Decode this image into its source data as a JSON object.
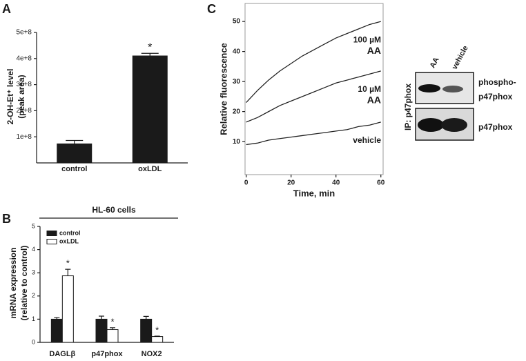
{
  "chart_data": [
    {
      "type": "bar",
      "panel": "A",
      "ylabel": [
        "2-OH-Et⁺ level",
        "(peak area)"
      ],
      "categories": [
        "control",
        "oxLDL"
      ],
      "values": [
        73000000,
        410000000
      ],
      "errors": [
        13000000,
        10000000
      ],
      "color": "#1a1a1a",
      "ylim": [
        0,
        500000000
      ],
      "yticks": [
        {
          "value": 100000000,
          "label": "1e+8"
        },
        {
          "value": 200000000,
          "label": "2e+8"
        },
        {
          "value": 300000000,
          "label": "3e+8"
        },
        {
          "value": 400000000,
          "label": "4e+8"
        },
        {
          "value": 500000000,
          "label": "5e+8"
        }
      ],
      "annotations": [
        {
          "text": "*",
          "category": 1
        }
      ]
    },
    {
      "type": "bar",
      "panel": "B",
      "title": "HL-60 cells",
      "ylabel": [
        "mRNA expression",
        "(relative to control)"
      ],
      "categories": [
        "DAGLβ",
        "p47phox",
        "NOX2"
      ],
      "series": [
        {
          "name": "control",
          "color": "#1a1a1a",
          "values": [
            1,
            1,
            1
          ],
          "errors": [
            0.07,
            0.13,
            0.12
          ]
        },
        {
          "name": "oxLDL",
          "color": "#ffffff",
          "values": [
            2.87,
            0.55,
            0.25
          ],
          "errors": [
            0.28,
            0.08,
            0.02
          ]
        }
      ],
      "ylim": [
        0,
        5
      ],
      "yticks": [
        0,
        1,
        2,
        3,
        4,
        5
      ],
      "annotations": [
        {
          "text": "*",
          "series": 1,
          "category": 0
        },
        {
          "text": "*",
          "series": 1,
          "category": 1
        },
        {
          "text": "*",
          "series": 1,
          "category": 2
        }
      ]
    },
    {
      "type": "line",
      "panel": "C",
      "xlabel": "Time, min",
      "ylabel": "Relative fluorescence",
      "x": [
        0,
        5,
        10,
        15,
        20,
        25,
        30,
        35,
        40,
        45,
        50,
        55,
        60
      ],
      "series": [
        {
          "name": [
            "100 µM",
            "AA"
          ],
          "color": "#222222",
          "values": [
            23,
            27,
            30.5,
            33.5,
            36,
            38.5,
            40.5,
            42.5,
            44.5,
            46,
            47.5,
            49,
            50
          ]
        },
        {
          "name": [
            "10 µM",
            "AA"
          ],
          "color": "#222222",
          "values": [
            16.5,
            18,
            20,
            22,
            23.5,
            25,
            26.5,
            28,
            29.5,
            30.5,
            31.5,
            32.5,
            33.5
          ]
        },
        {
          "name": [
            "vehicle"
          ],
          "color": "#222222",
          "values": [
            9,
            9.5,
            10.5,
            11,
            11.5,
            12,
            12.5,
            13,
            13.5,
            14,
            15,
            15.5,
            16.5
          ]
        }
      ],
      "xlim": [
        -0.5,
        61
      ],
      "xticks": [
        0,
        20,
        40,
        60
      ],
      "ylim": [
        -1,
        56
      ],
      "yticks": [
        10,
        20,
        30,
        40,
        50
      ]
    }
  ],
  "blot": {
    "lanes": [
      "AA",
      "vehicle"
    ],
    "side_label": "IP: p47phox",
    "rows": [
      {
        "label": [
          "phospho-",
          "p47phox"
        ]
      },
      {
        "label": [
          "p47phox"
        ]
      }
    ]
  }
}
